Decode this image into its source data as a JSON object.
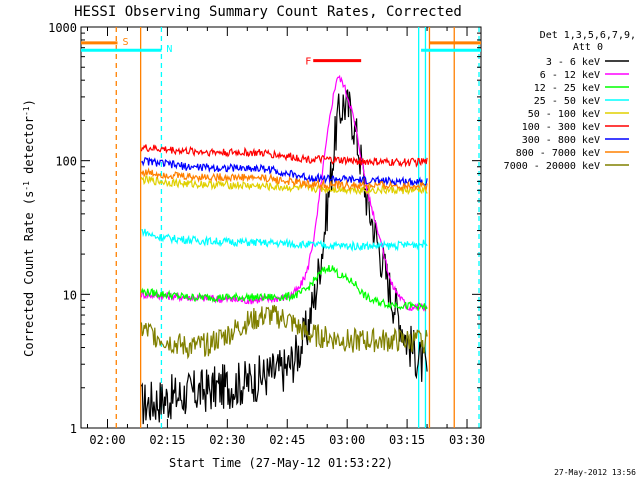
{
  "chart_data": {
    "type": "line",
    "title": "HESSI Observing Summary Count Rates, Corrected",
    "xlabel": "Start Time (27-May-12 01:53:22)",
    "ylabel_main": "Corrected Count Rate (s",
    "ylabel_sup1": "-1",
    "ylabel_mid": " detector",
    "ylabel_sup2": "-1",
    "ylabel_end": ")",
    "yscale": "log",
    "ylim": [
      1,
      1000
    ],
    "xlim_min": [
      113.37,
      213.5
    ],
    "yticks": [
      1,
      10,
      100,
      1000
    ],
    "ytick_labels": [
      "1",
      "10",
      "100",
      "1000"
    ],
    "xticks_min": [
      120,
      135,
      150,
      165,
      180,
      195,
      210
    ],
    "xtick_labels": [
      "02:00",
      "02:15",
      "02:30",
      "02:45",
      "03:00",
      "03:15",
      "03:30"
    ],
    "legend": {
      "header1": "Det 1,3,5,6,7,9,",
      "header2": "Att 0",
      "entries": [
        {
          "label": "3 - 6 keV",
          "color": "#000000"
        },
        {
          "label": "6 - 12 keV",
          "color": "#ff00ff"
        },
        {
          "label": "12 - 25 keV",
          "color": "#00ff00"
        },
        {
          "label": "25 - 50 keV",
          "color": "#00ffff"
        },
        {
          "label": "50 - 100 keV",
          "color": "#e0d000"
        },
        {
          "label": "100 - 300 keV",
          "color": "#ff0000"
        },
        {
          "label": "300 - 800 keV",
          "color": "#0000ff"
        },
        {
          "label": "800 - 7000 keV",
          "color": "#ff8000"
        },
        {
          "label": "7000 - 20000 keV",
          "color": "#808000"
        }
      ]
    },
    "series": [
      {
        "name": "3 - 6 keV",
        "color": "#000000",
        "x": [
          128.5,
          140,
          155,
          160,
          165,
          168,
          170,
          172,
          174,
          176,
          177.5,
          179,
          181,
          183,
          185,
          188,
          191,
          195,
          200
        ],
        "y": [
          1.5,
          1.8,
          2.2,
          2.5,
          2.8,
          3.8,
          5.5,
          10,
          25,
          80,
          200,
          270,
          230,
          120,
          50,
          22,
          10,
          4.5,
          2.6
        ]
      },
      {
        "name": "6 - 12 keV",
        "color": "#ff00ff",
        "x": [
          128.5,
          140,
          155,
          160,
          165,
          168,
          170,
          172,
          174,
          176,
          177.5,
          179,
          181,
          183,
          185,
          188,
          191,
          195,
          200
        ],
        "y": [
          10,
          9.5,
          9,
          9.2,
          9.5,
          11,
          15,
          30,
          90,
          250,
          430,
          380,
          250,
          130,
          60,
          28,
          12,
          8,
          8
        ]
      },
      {
        "name": "12 - 25 keV",
        "color": "#00ff00",
        "x": [
          128.5,
          140,
          150,
          160,
          165,
          168,
          170,
          172,
          174,
          176,
          178,
          180,
          182,
          184,
          186,
          190,
          195,
          200
        ],
        "y": [
          10.5,
          9.5,
          9.5,
          9.5,
          9.6,
          10,
          11,
          13,
          15,
          16,
          14,
          13,
          12,
          10,
          9,
          8.5,
          8.2,
          8
        ]
      },
      {
        "name": "25 - 50 keV",
        "color": "#00ffff",
        "x": [
          128.5,
          132,
          137,
          145,
          155,
          165,
          170,
          180,
          190,
          200
        ],
        "y": [
          30,
          27,
          26,
          25,
          24.5,
          24,
          23.5,
          23,
          23,
          24
        ]
      },
      {
        "name": "50 - 100 keV",
        "color": "#e0d000",
        "x": [
          128.5,
          140,
          150,
          155,
          160,
          170,
          180,
          190,
          200
        ],
        "y": [
          72,
          67,
          66,
          65,
          64,
          62,
          61,
          60,
          60
        ]
      },
      {
        "name": "100 - 300 keV",
        "color": "#ff0000",
        "x": [
          128.5,
          140,
          150,
          155,
          160,
          165,
          170,
          180,
          190,
          200
        ],
        "y": [
          125,
          118,
          115,
          115,
          113,
          108,
          103,
          100,
          97,
          98
        ]
      },
      {
        "name": "300 - 800 keV",
        "color": "#0000ff",
        "x": [
          128.5,
          140,
          150,
          155,
          160,
          165,
          170,
          180,
          190,
          200
        ],
        "y": [
          100,
          90,
          88,
          88,
          87,
          80,
          75,
          72,
          70,
          70
        ]
      },
      {
        "name": "800 - 7000 keV",
        "color": "#ff8000",
        "x": [
          128.5,
          140,
          150,
          155,
          160,
          165,
          170,
          180,
          190,
          200
        ],
        "y": [
          82,
          76,
          75,
          75,
          74,
          70,
          67,
          65,
          65,
          65
        ]
      },
      {
        "name": "7000 - 20000 keV",
        "color": "#808000",
        "x": [
          128.5,
          135,
          140,
          145,
          150,
          155,
          160,
          165,
          170,
          180,
          190,
          200
        ],
        "y": [
          5.5,
          4.5,
          4.0,
          4.2,
          5.0,
          6.2,
          7.0,
          6.5,
          5.0,
          4.5,
          4.5,
          4.5
        ]
      }
    ],
    "annotations": [
      {
        "label": "S",
        "color": "#ff8000",
        "x_min": [
          113.37,
          122.5
        ],
        "y": 760
      },
      {
        "label": "N",
        "color": "#00ffff",
        "x_min": [
          113.37,
          133.5
        ],
        "y": 670
      },
      {
        "label": "F",
        "color": "#ff0000",
        "x_min": [
          171.5,
          183.5
        ],
        "y": 560
      }
    ],
    "vlines": [
      {
        "x_min": 122.2,
        "color": "#ff8000",
        "style": "dashed"
      },
      {
        "x_min": 128.3,
        "color": "#ff8000",
        "style": "solid"
      },
      {
        "x_min": 133.5,
        "color": "#00ffff",
        "style": "dashed"
      },
      {
        "x_min": 197.9,
        "color": "#00ffff",
        "style": "solid"
      },
      {
        "x_min": 199.6,
        "color": "#00ffff",
        "style": "solid"
      },
      {
        "x_min": 200.6,
        "color": "#ff8000",
        "style": "solid"
      },
      {
        "x_min": 206.8,
        "color": "#ff8000",
        "style": "solid"
      },
      {
        "x_min": 213.0,
        "color": "#00ffff",
        "style": "dashed"
      }
    ],
    "right_segments": [
      {
        "x_min": [
          200.6,
          213.5
        ],
        "y": 760,
        "color": "#ff8000"
      },
      {
        "x_min": [
          198.5,
          213.5
        ],
        "y": 670,
        "color": "#00ffff"
      }
    ],
    "footer_date": "27-May-2012 13:56"
  }
}
